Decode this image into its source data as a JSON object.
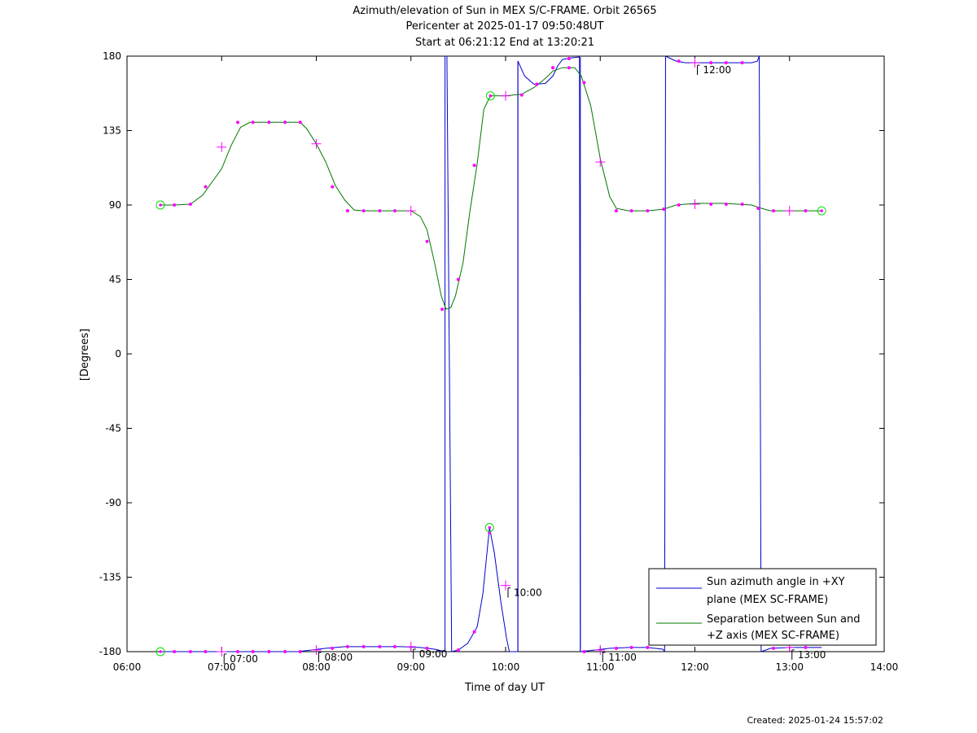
{
  "colors": {
    "azimuth": "#0000cc",
    "separation": "#007700",
    "marker": "#ff00ff",
    "endpoint": "#00dd00"
  },
  "chart_data": {
    "type": "line",
    "title": "Azimuth/elevation of Sun in MEX S/C-FRAME.  Orbit 26565",
    "subtitle": "Pericenter at 2025-01-17 09:50:48UT",
    "subtitle2": "Start at 06:21:12 End at 13:20:21",
    "xlabel": "Time of day UT",
    "ylabel": "[Degrees]",
    "xlim": [
      6.0,
      14.0
    ],
    "ylim": [
      -180,
      180
    ],
    "xticks": [
      6,
      7,
      8,
      9,
      10,
      11,
      12,
      13,
      14
    ],
    "xtick_labels": [
      "06:00",
      "07:00",
      "08:00",
      "09:00",
      "10:00",
      "11:00",
      "12:00",
      "13:00",
      "14:00"
    ],
    "yticks": [
      180,
      135,
      90,
      45,
      0,
      -45,
      -90,
      -135,
      -180
    ],
    "ytick_labels": [
      "180",
      "135",
      "90",
      "45",
      "0",
      "-45",
      "-90",
      "-135",
      "-180"
    ],
    "grid": false,
    "legend_position": "bottom-right",
    "series": [
      {
        "name": "Sun azimuth angle in +XY plane (MEX SC-FRAME)",
        "legend_lines": [
          "Sun azimuth angle in +XY",
          "plane (MEX SC-FRAME)"
        ],
        "segments": [
          [
            [
              6.353,
              -180
            ],
            [
              6.5,
              -180
            ],
            [
              7.0,
              -180
            ],
            [
              7.5,
              -180
            ],
            [
              7.8,
              -180
            ],
            [
              7.95,
              -179
            ],
            [
              8.1,
              -178
            ],
            [
              8.3,
              -177
            ],
            [
              8.6,
              -177
            ],
            [
              8.9,
              -177
            ],
            [
              9.1,
              -177.5
            ],
            [
              9.25,
              -178.5
            ],
            [
              9.36,
              -180
            ]
          ],
          [
            [
              9.36,
              180
            ],
            [
              9.38,
              180
            ]
          ],
          [
            [
              9.43,
              -180
            ],
            [
              9.5,
              -179
            ],
            [
              9.6,
              -175
            ],
            [
              9.7,
              -165
            ],
            [
              9.76,
              -145
            ],
            [
              9.83,
              -105
            ],
            [
              9.88,
              -120
            ],
            [
              9.95,
              -150
            ],
            [
              10.01,
              -172
            ],
            [
              10.04,
              -180
            ]
          ],
          [
            [
              10.13,
              -180
            ],
            [
              10.13,
              177
            ],
            [
              10.2,
              168
            ],
            [
              10.3,
              163
            ],
            [
              10.42,
              163.5
            ],
            [
              10.5,
              168
            ],
            [
              10.55,
              174
            ],
            [
              10.6,
              178
            ],
            [
              10.7,
              179
            ],
            [
              10.78,
              179.5
            ],
            [
              10.79,
              -180
            ]
          ],
          [
            [
              10.79,
              -180
            ],
            [
              10.95,
              -179
            ],
            [
              11.1,
              -178
            ],
            [
              11.3,
              -177.5
            ],
            [
              11.5,
              -177.5
            ],
            [
              11.66,
              -178.5
            ],
            [
              11.68,
              -180
            ]
          ],
          [
            [
              11.69,
              180
            ],
            [
              11.8,
              177
            ],
            [
              11.9,
              176
            ],
            [
              12.1,
              176
            ],
            [
              12.4,
              176
            ],
            [
              12.6,
              176
            ],
            [
              12.66,
              177
            ],
            [
              12.68,
              180
            ]
          ],
          [
            [
              12.7,
              -180
            ],
            [
              12.8,
              -178
            ],
            [
              13.0,
              -177.5
            ],
            [
              13.339,
              -177.5
            ]
          ]
        ],
        "wrap_lines": [
          [
            9.36,
            -180,
            9.36,
            180
          ],
          [
            9.38,
            180,
            9.43,
            -180
          ],
          [
            10.04,
            -180,
            10.13,
            -180
          ],
          [
            10.13,
            -180,
            10.13,
            177
          ],
          [
            10.79,
            179.5,
            10.79,
            -180
          ],
          [
            11.68,
            -180,
            11.69,
            180
          ],
          [
            12.68,
            180,
            12.7,
            -180
          ]
        ]
      },
      {
        "name": "Separation between Sun and +Z axis (MEX SC-FRAME)",
        "legend_lines": [
          "Separation between Sun and",
          "+Z axis (MEX SC-FRAME)"
        ],
        "points": [
          [
            6.353,
            90
          ],
          [
            6.5,
            90
          ],
          [
            6.67,
            90.5
          ],
          [
            6.8,
            96
          ],
          [
            6.9,
            104
          ],
          [
            7.0,
            112
          ],
          [
            7.1,
            126
          ],
          [
            7.2,
            137
          ],
          [
            7.3,
            140
          ],
          [
            7.5,
            140
          ],
          [
            7.7,
            140
          ],
          [
            7.83,
            140
          ],
          [
            7.9,
            136
          ],
          [
            8.0,
            127
          ],
          [
            8.1,
            116
          ],
          [
            8.2,
            102
          ],
          [
            8.3,
            93
          ],
          [
            8.4,
            87
          ],
          [
            8.5,
            86.5
          ],
          [
            8.7,
            86.5
          ],
          [
            8.9,
            86.5
          ],
          [
            9.0,
            86.5
          ],
          [
            9.1,
            83
          ],
          [
            9.17,
            75
          ],
          [
            9.25,
            55
          ],
          [
            9.32,
            35
          ],
          [
            9.37,
            27
          ],
          [
            9.42,
            28
          ],
          [
            9.47,
            35
          ],
          [
            9.55,
            55
          ],
          [
            9.62,
            85
          ],
          [
            9.7,
            115
          ],
          [
            9.77,
            148
          ],
          [
            9.84,
            156
          ],
          [
            10.0,
            156
          ],
          [
            10.17,
            157
          ],
          [
            10.3,
            161
          ],
          [
            10.43,
            167
          ],
          [
            10.5,
            171
          ],
          [
            10.6,
            173
          ],
          [
            10.73,
            173
          ],
          [
            10.8,
            168
          ],
          [
            10.9,
            150
          ],
          [
            11.0,
            118
          ],
          [
            11.1,
            95
          ],
          [
            11.17,
            88
          ],
          [
            11.3,
            86.5
          ],
          [
            11.5,
            86.5
          ],
          [
            11.67,
            87.5
          ],
          [
            11.8,
            90
          ],
          [
            12.0,
            91
          ],
          [
            12.3,
            91
          ],
          [
            12.6,
            90
          ],
          [
            12.67,
            88.5
          ],
          [
            12.8,
            86.5
          ],
          [
            13.0,
            86.5
          ],
          [
            13.339,
            86.5
          ]
        ]
      }
    ],
    "markers_separation": [
      {
        "x": 6.5,
        "y": 90,
        "kind": "dot"
      },
      {
        "x": 6.67,
        "y": 90.5,
        "kind": "dot"
      },
      {
        "x": 6.83,
        "y": 101,
        "kind": "dot"
      },
      {
        "x": 7.0,
        "y": 125,
        "kind": "plus"
      },
      {
        "x": 7.17,
        "y": 140,
        "kind": "dot"
      },
      {
        "x": 7.33,
        "y": 140,
        "kind": "dot"
      },
      {
        "x": 7.5,
        "y": 140,
        "kind": "dot"
      },
      {
        "x": 7.67,
        "y": 140,
        "kind": "dot"
      },
      {
        "x": 7.83,
        "y": 140,
        "kind": "dot"
      },
      {
        "x": 8.0,
        "y": 127,
        "kind": "plus"
      },
      {
        "x": 8.17,
        "y": 101,
        "kind": "dot"
      },
      {
        "x": 8.33,
        "y": 86.5,
        "kind": "dot"
      },
      {
        "x": 8.5,
        "y": 86.5,
        "kind": "dot"
      },
      {
        "x": 8.67,
        "y": 86.5,
        "kind": "dot"
      },
      {
        "x": 8.83,
        "y": 86.5,
        "kind": "dot"
      },
      {
        "x": 9.0,
        "y": 86.5,
        "kind": "plus"
      },
      {
        "x": 9.17,
        "y": 68,
        "kind": "dot"
      },
      {
        "x": 9.33,
        "y": 27,
        "kind": "dot"
      },
      {
        "x": 9.5,
        "y": 45,
        "kind": "dot"
      },
      {
        "x": 9.67,
        "y": 114,
        "kind": "dot"
      },
      {
        "x": 10.0,
        "y": 156,
        "kind": "plus"
      },
      {
        "x": 10.17,
        "y": 156.5,
        "kind": "dot"
      },
      {
        "x": 10.33,
        "y": 163,
        "kind": "dot"
      },
      {
        "x": 10.5,
        "y": 173,
        "kind": "dot"
      },
      {
        "x": 10.67,
        "y": 173,
        "kind": "dot"
      },
      {
        "x": 10.83,
        "y": 164,
        "kind": "dot"
      },
      {
        "x": 11.0,
        "y": 116,
        "kind": "plus"
      },
      {
        "x": 11.17,
        "y": 86.5,
        "kind": "dot"
      },
      {
        "x": 11.33,
        "y": 86.5,
        "kind": "dot"
      },
      {
        "x": 11.5,
        "y": 86.5,
        "kind": "dot"
      },
      {
        "x": 11.67,
        "y": 87.5,
        "kind": "dot"
      },
      {
        "x": 11.83,
        "y": 90,
        "kind": "dot"
      },
      {
        "x": 12.0,
        "y": 90.5,
        "kind": "plus"
      },
      {
        "x": 12.17,
        "y": 90.5,
        "kind": "dot"
      },
      {
        "x": 12.33,
        "y": 90.5,
        "kind": "dot"
      },
      {
        "x": 12.5,
        "y": 90.5,
        "kind": "dot"
      },
      {
        "x": 12.67,
        "y": 88,
        "kind": "dot"
      },
      {
        "x": 12.83,
        "y": 86.5,
        "kind": "dot"
      },
      {
        "x": 13.0,
        "y": 86.5,
        "kind": "plus"
      },
      {
        "x": 13.17,
        "y": 86.5,
        "kind": "dot"
      }
    ],
    "markers_azimuth": [
      {
        "x": 6.5,
        "y": -180,
        "kind": "dot"
      },
      {
        "x": 6.67,
        "y": -180,
        "kind": "dot"
      },
      {
        "x": 6.83,
        "y": -180,
        "kind": "dot"
      },
      {
        "x": 7.0,
        "y": -180,
        "kind": "plus"
      },
      {
        "x": 7.17,
        "y": -180,
        "kind": "dot"
      },
      {
        "x": 7.33,
        "y": -180,
        "kind": "dot"
      },
      {
        "x": 7.5,
        "y": -180,
        "kind": "dot"
      },
      {
        "x": 7.67,
        "y": -180,
        "kind": "dot"
      },
      {
        "x": 7.83,
        "y": -180,
        "kind": "dot"
      },
      {
        "x": 8.0,
        "y": -179,
        "kind": "plus"
      },
      {
        "x": 8.17,
        "y": -178,
        "kind": "dot"
      },
      {
        "x": 8.33,
        "y": -177,
        "kind": "dot"
      },
      {
        "x": 8.5,
        "y": -177,
        "kind": "dot"
      },
      {
        "x": 8.67,
        "y": -177,
        "kind": "dot"
      },
      {
        "x": 8.83,
        "y": -177,
        "kind": "dot"
      },
      {
        "x": 9.0,
        "y": -177,
        "kind": "plus"
      },
      {
        "x": 9.17,
        "y": -178,
        "kind": "dot"
      },
      {
        "x": 9.5,
        "y": -179,
        "kind": "dot"
      },
      {
        "x": 9.67,
        "y": -168,
        "kind": "dot"
      },
      {
        "x": 9.83,
        "y": -108,
        "kind": "dot"
      },
      {
        "x": 10.0,
        "y": -140,
        "kind": "plus"
      },
      {
        "x": 10.33,
        "y": 163,
        "kind": "dot"
      },
      {
        "x": 10.5,
        "y": 173,
        "kind": "dot"
      },
      {
        "x": 10.67,
        "y": 178.5,
        "kind": "dot"
      },
      {
        "x": 10.83,
        "y": -180,
        "kind": "dot"
      },
      {
        "x": 11.0,
        "y": -179,
        "kind": "plus"
      },
      {
        "x": 11.17,
        "y": -178,
        "kind": "dot"
      },
      {
        "x": 11.33,
        "y": -177.5,
        "kind": "dot"
      },
      {
        "x": 11.5,
        "y": -177.5,
        "kind": "dot"
      },
      {
        "x": 11.83,
        "y": 177,
        "kind": "dot"
      },
      {
        "x": 12.0,
        "y": 176,
        "kind": "plus"
      },
      {
        "x": 12.17,
        "y": 176,
        "kind": "dot"
      },
      {
        "x": 12.33,
        "y": 176,
        "kind": "dot"
      },
      {
        "x": 12.5,
        "y": 176,
        "kind": "dot"
      },
      {
        "x": 12.83,
        "y": -178,
        "kind": "dot"
      },
      {
        "x": 13.0,
        "y": -177.5,
        "kind": "plus"
      },
      {
        "x": 13.17,
        "y": -177.5,
        "kind": "dot"
      }
    ],
    "endpoint_markers": [
      {
        "x": 6.353,
        "y": 90
      },
      {
        "x": 13.339,
        "y": 86.5
      },
      {
        "x": 9.84,
        "y": 156
      },
      {
        "x": 6.353,
        "y": -180
      },
      {
        "x": 9.83,
        "y": -105
      }
    ],
    "time_annotations": [
      {
        "x": 7.0,
        "y": -180,
        "label": "07:00"
      },
      {
        "x": 8.0,
        "y": -179,
        "label": "08:00"
      },
      {
        "x": 9.0,
        "y": -177,
        "label": "09:00"
      },
      {
        "x": 10.0,
        "y": -140,
        "label": "10:00"
      },
      {
        "x": 11.0,
        "y": -179,
        "label": "11:00"
      },
      {
        "x": 12.0,
        "y": 176,
        "label": "12:00"
      },
      {
        "x": 13.0,
        "y": -177.5,
        "label": "13:00"
      }
    ]
  },
  "footer": {
    "created": "Created: 2025-01-24 15:57:02"
  }
}
